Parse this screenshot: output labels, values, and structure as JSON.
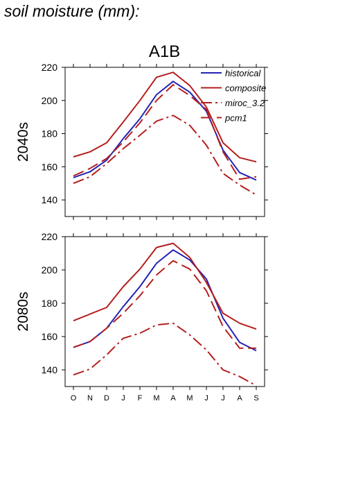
{
  "page_title": "soil moisture (mm):",
  "chart_data": {
    "type": "line",
    "title": "A1B",
    "categories": [
      "O",
      "N",
      "D",
      "J",
      "F",
      "M",
      "A",
      "M",
      "J",
      "J",
      "A",
      "S"
    ],
    "yticks": [
      140,
      160,
      180,
      200,
      220
    ],
    "ylim": [
      130,
      220
    ],
    "legend_position": "top-right",
    "series_styles": [
      {
        "name": "historical",
        "color": "#2323b4",
        "dash": "solid"
      },
      {
        "name": "composite",
        "color": "#b41e1e",
        "dash": "solid"
      },
      {
        "name": "miroc_3.2",
        "color": "#b41e1e",
        "dash": "dashdot"
      },
      {
        "name": "pcm1",
        "color": "#b41e1e",
        "dash": "longdash"
      }
    ],
    "panels": [
      {
        "label": "2040s",
        "series": [
          {
            "name": "historical",
            "values": [
              153.5,
              157,
              164,
              177,
              189,
              203.5,
              211.5,
              205,
              193.5,
              170,
              156.5,
              152
            ]
          },
          {
            "name": "composite",
            "values": [
              166,
              169,
              174.5,
              187,
              200,
              214,
              217,
              209,
              196,
              174.5,
              165.5,
              163
            ]
          },
          {
            "name": "miroc_3.2",
            "values": [
              150,
              154,
              162,
              171,
              179,
              187.5,
              191,
              185,
              173,
              156,
              149,
              143
            ]
          },
          {
            "name": "pcm1",
            "values": [
              154.5,
              159,
              165,
              175,
              186.5,
              200,
              209.5,
              203,
              194.5,
              169,
              152.5,
              154
            ]
          }
        ]
      },
      {
        "label": "2080s",
        "series": [
          {
            "name": "historical",
            "values": [
              153.5,
              157,
              165,
              178,
              190,
              204,
              212,
              206,
              194.5,
              171,
              156.5,
              151.5
            ]
          },
          {
            "name": "composite",
            "values": [
              169.5,
              173.5,
              177.5,
              190,
              200.5,
              213.5,
              216,
              207.5,
              192.5,
              174,
              168,
              164.5
            ]
          },
          {
            "name": "miroc_3.2",
            "values": [
              137,
              140.5,
              149,
              159,
              162,
              167,
              168,
              161,
              152,
              140,
              136,
              130.5
            ]
          },
          {
            "name": "pcm1",
            "values": [
              153.5,
              157,
              165,
              174,
              184.5,
              197,
              205.5,
              200.5,
              187.5,
              166,
              153,
              153
            ]
          }
        ]
      }
    ]
  }
}
